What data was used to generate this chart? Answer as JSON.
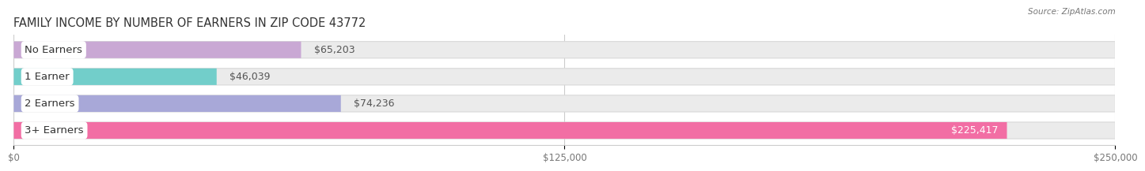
{
  "title": "FAMILY INCOME BY NUMBER OF EARNERS IN ZIP CODE 43772",
  "source": "Source: ZipAtlas.com",
  "categories": [
    "No Earners",
    "1 Earner",
    "2 Earners",
    "3+ Earners"
  ],
  "values": [
    65203,
    46039,
    74236,
    225417
  ],
  "bar_colors": [
    "#c9a8d4",
    "#72ceca",
    "#a8a8d8",
    "#f26ea4"
  ],
  "track_color": "#ebebeb",
  "track_border_color": "#d8d8d8",
  "value_labels": [
    "$65,203",
    "$46,039",
    "$74,236",
    "$225,417"
  ],
  "xmax": 250000,
  "xticks": [
    0,
    125000,
    250000
  ],
  "xtick_labels": [
    "$0",
    "$125,000",
    "$250,000"
  ],
  "bg_color": "#ffffff",
  "title_fontsize": 10.5,
  "label_fontsize": 9.5,
  "value_fontsize": 9
}
